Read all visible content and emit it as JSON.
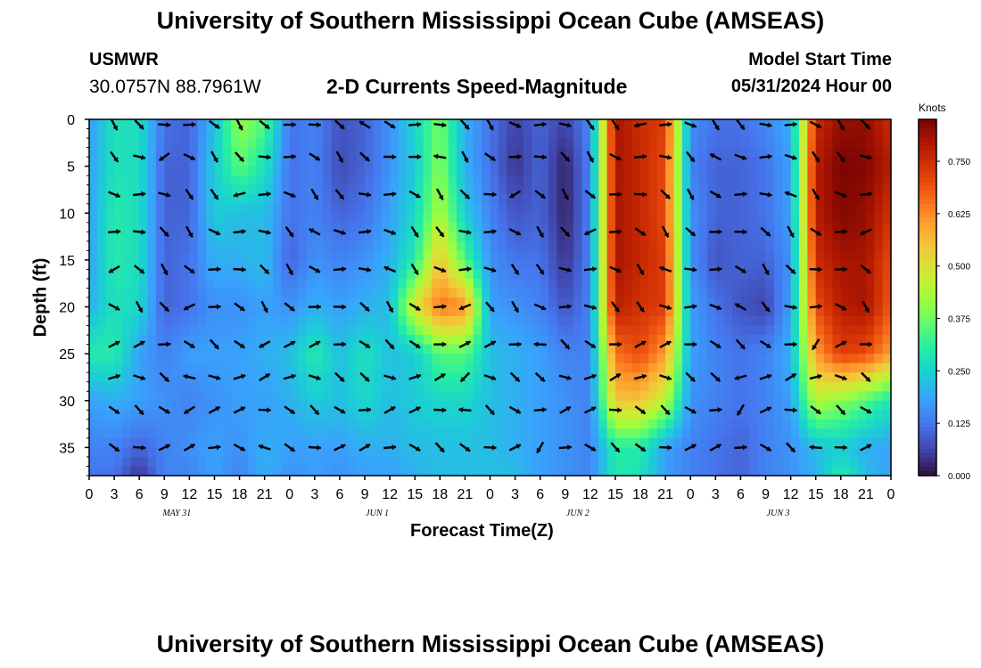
{
  "header": {
    "title": "University of Southern Mississippi Ocean Cube (AMSEAS)",
    "station": "USMWR",
    "coords": "30.0757N  88.7961W",
    "subtitle": "2-D Currents Speed-Magnitude",
    "model_start_label": "Model Start Time",
    "model_start_value": "05/31/2024 Hour 00"
  },
  "footer": {
    "title": "University of Southern Mississippi Ocean Cube (AMSEAS)"
  },
  "colorbar": {
    "units": "Knots",
    "ticks": [
      "0.000",
      "0.125",
      "0.250",
      "0.375",
      "0.500",
      "0.625",
      "0.750"
    ],
    "max": 0.85,
    "colors": [
      "#30123b",
      "#4145ab",
      "#4675ed",
      "#39a2fc",
      "#1bcfd4",
      "#24eca6",
      "#61fc6c",
      "#a4fc3b",
      "#d1e834",
      "#f3c63a",
      "#fe9b2d",
      "#f36315",
      "#d93806",
      "#b11901",
      "#7a0403"
    ]
  },
  "chart_data": {
    "type": "heatmap",
    "title": "2-D Currents Speed-Magnitude",
    "xlabel": "Forecast Time(Z)",
    "ylabel": "Depth (ft)",
    "value_units": "Knots",
    "x_range_hours": [
      0,
      96
    ],
    "y_range_ft": [
      0,
      38
    ],
    "x_tick_labels": [
      "0",
      "3",
      "6",
      "9",
      "12",
      "15",
      "18",
      "21",
      "0",
      "3",
      "6",
      "9",
      "12",
      "15",
      "18",
      "21",
      "0",
      "3",
      "6",
      "9",
      "12",
      "15",
      "18",
      "21",
      "0",
      "3",
      "6",
      "9",
      "12",
      "15",
      "18",
      "21",
      "0"
    ],
    "day_labels": [
      "MAY 31",
      "JUN 1",
      "JUN 2",
      "JUN 3"
    ],
    "y_ticks": [
      0,
      5,
      10,
      15,
      20,
      25,
      30,
      35
    ],
    "speed_grid": {
      "hours": [
        0,
        3,
        6,
        9,
        12,
        15,
        18,
        21,
        24,
        27,
        30,
        33,
        36,
        39,
        42,
        45,
        48,
        51,
        54,
        57,
        60,
        63,
        66,
        69,
        72,
        75,
        78,
        81,
        84,
        87,
        90,
        93,
        96
      ],
      "depths_ft": [
        0,
        5,
        10,
        15,
        20,
        25,
        30,
        35,
        38
      ],
      "rows": [
        [
          0.17,
          0.28,
          0.27,
          0.12,
          0.1,
          0.22,
          0.42,
          0.35,
          0.12,
          0.14,
          0.08,
          0.1,
          0.16,
          0.26,
          0.38,
          0.2,
          0.12,
          0.06,
          0.1,
          0.06,
          0.15,
          0.8,
          0.75,
          0.72,
          0.16,
          0.12,
          0.12,
          0.15,
          0.2,
          0.75,
          0.82,
          0.82,
          0.75
        ],
        [
          0.18,
          0.28,
          0.27,
          0.1,
          0.1,
          0.24,
          0.36,
          0.28,
          0.12,
          0.14,
          0.07,
          0.1,
          0.16,
          0.24,
          0.4,
          0.2,
          0.12,
          0.04,
          0.1,
          0.02,
          0.14,
          0.8,
          0.76,
          0.7,
          0.14,
          0.1,
          0.1,
          0.12,
          0.18,
          0.78,
          0.85,
          0.84,
          0.78
        ],
        [
          0.18,
          0.3,
          0.27,
          0.1,
          0.1,
          0.24,
          0.22,
          0.22,
          0.12,
          0.14,
          0.1,
          0.12,
          0.18,
          0.26,
          0.44,
          0.24,
          0.14,
          0.08,
          0.1,
          0.02,
          0.14,
          0.8,
          0.76,
          0.7,
          0.16,
          0.1,
          0.1,
          0.12,
          0.18,
          0.78,
          0.84,
          0.82,
          0.74
        ],
        [
          0.18,
          0.3,
          0.27,
          0.1,
          0.12,
          0.2,
          0.2,
          0.22,
          0.1,
          0.16,
          0.14,
          0.16,
          0.2,
          0.3,
          0.55,
          0.34,
          0.16,
          0.12,
          0.12,
          0.04,
          0.14,
          0.8,
          0.76,
          0.72,
          0.16,
          0.08,
          0.1,
          0.1,
          0.16,
          0.75,
          0.8,
          0.8,
          0.7
        ],
        [
          0.2,
          0.28,
          0.26,
          0.1,
          0.12,
          0.16,
          0.16,
          0.18,
          0.16,
          0.2,
          0.18,
          0.2,
          0.22,
          0.5,
          0.65,
          0.62,
          0.18,
          0.16,
          0.14,
          0.08,
          0.14,
          0.78,
          0.74,
          0.72,
          0.18,
          0.12,
          0.08,
          0.06,
          0.18,
          0.7,
          0.78,
          0.8,
          0.68
        ],
        [
          0.3,
          0.3,
          0.18,
          0.14,
          0.18,
          0.18,
          0.18,
          0.2,
          0.22,
          0.3,
          0.22,
          0.28,
          0.22,
          0.24,
          0.35,
          0.35,
          0.22,
          0.2,
          0.18,
          0.14,
          0.14,
          0.65,
          0.7,
          0.6,
          0.18,
          0.14,
          0.12,
          0.14,
          0.2,
          0.6,
          0.72,
          0.7,
          0.6
        ],
        [
          0.18,
          0.2,
          0.18,
          0.16,
          0.14,
          0.16,
          0.18,
          0.18,
          0.2,
          0.24,
          0.22,
          0.26,
          0.22,
          0.24,
          0.26,
          0.26,
          0.22,
          0.2,
          0.18,
          0.16,
          0.14,
          0.55,
          0.55,
          0.45,
          0.16,
          0.14,
          0.12,
          0.14,
          0.18,
          0.45,
          0.4,
          0.35,
          0.28
        ],
        [
          0.14,
          0.14,
          0.1,
          0.14,
          0.16,
          0.18,
          0.16,
          0.2,
          0.18,
          0.18,
          0.18,
          0.2,
          0.2,
          0.22,
          0.22,
          0.22,
          0.22,
          0.2,
          0.18,
          0.16,
          0.14,
          0.3,
          0.3,
          0.18,
          0.14,
          0.12,
          0.1,
          0.14,
          0.16,
          0.22,
          0.24,
          0.2,
          0.18
        ],
        [
          0.12,
          0.12,
          0.04,
          0.14,
          0.14,
          0.18,
          0.14,
          0.2,
          0.16,
          0.18,
          0.16,
          0.18,
          0.18,
          0.2,
          0.22,
          0.22,
          0.22,
          0.22,
          0.18,
          0.16,
          0.14,
          0.3,
          0.28,
          0.18,
          0.14,
          0.12,
          0.1,
          0.14,
          0.16,
          0.2,
          0.3,
          0.22,
          0.18
        ]
      ]
    }
  }
}
